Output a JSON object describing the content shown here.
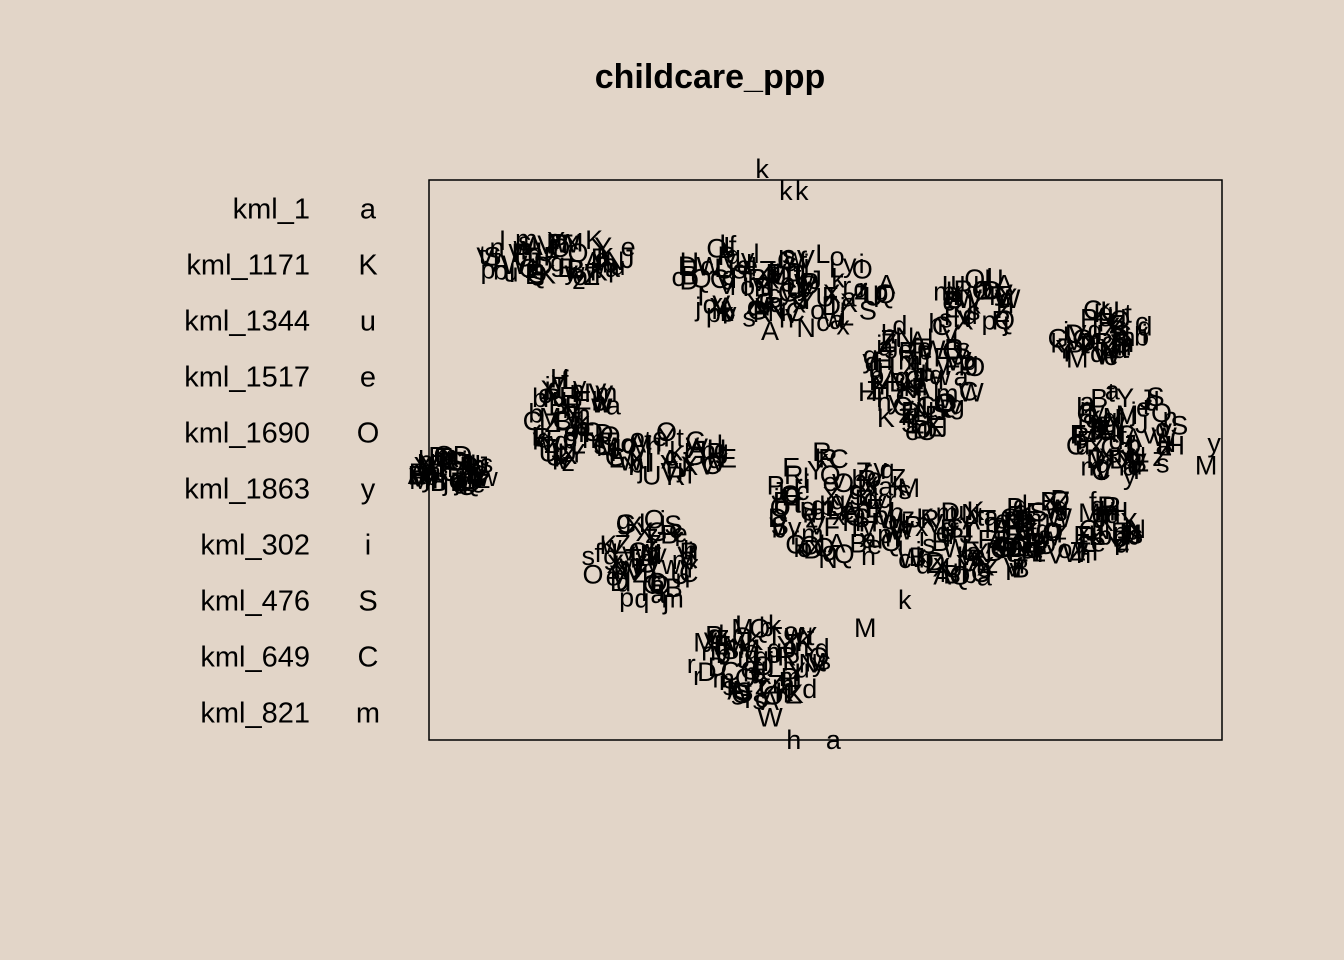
{
  "chart_data": {
    "type": "scatter",
    "title": "childcare_ppp",
    "xlabel": "",
    "ylabel": "",
    "axes_shown": false,
    "legend_position": "left",
    "legend": [
      {
        "name": "kml_1",
        "symbol": "a"
      },
      {
        "name": "kml_1171",
        "symbol": "K"
      },
      {
        "name": "kml_1344",
        "symbol": "u"
      },
      {
        "name": "kml_1517",
        "symbol": "e"
      },
      {
        "name": "kml_1690",
        "symbol": "O"
      },
      {
        "name": "kml_1863",
        "symbol": "y"
      },
      {
        "name": "kml_302",
        "symbol": "i"
      },
      {
        "name": "kml_476",
        "symbol": "S"
      },
      {
        "name": "kml_649",
        "symbol": "C"
      },
      {
        "name": "kml_821",
        "symbol": "m"
      }
    ],
    "point_labels_pool": "abcdefghijklmnopqrstuvwxyzABCDEFGHIJKLMNOPQRSTUVWXYZ",
    "clusters": [
      {
        "cx": 0.16,
        "cy": 0.86,
        "rx": 0.11,
        "ry": 0.04,
        "n": 70
      },
      {
        "cx": 0.4,
        "cy": 0.82,
        "rx": 0.09,
        "ry": 0.07,
        "n": 80
      },
      {
        "cx": 0.5,
        "cy": 0.8,
        "rx": 0.08,
        "ry": 0.07,
        "n": 50
      },
      {
        "cx": 0.18,
        "cy": 0.57,
        "rx": 0.06,
        "ry": 0.08,
        "n": 70
      },
      {
        "cx": 0.3,
        "cy": 0.51,
        "rx": 0.08,
        "ry": 0.04,
        "n": 50
      },
      {
        "cx": 0.03,
        "cy": 0.48,
        "rx": 0.05,
        "ry": 0.03,
        "n": 60
      },
      {
        "cx": 0.27,
        "cy": 0.32,
        "rx": 0.07,
        "ry": 0.08,
        "n": 70
      },
      {
        "cx": 0.42,
        "cy": 0.14,
        "rx": 0.09,
        "ry": 0.07,
        "n": 90
      },
      {
        "cx": 0.52,
        "cy": 0.42,
        "rx": 0.09,
        "ry": 0.1,
        "n": 110
      },
      {
        "cx": 0.62,
        "cy": 0.65,
        "rx": 0.07,
        "ry": 0.1,
        "n": 100
      },
      {
        "cx": 0.68,
        "cy": 0.35,
        "rx": 0.1,
        "ry": 0.06,
        "n": 90
      },
      {
        "cx": 0.8,
        "cy": 0.38,
        "rx": 0.1,
        "ry": 0.05,
        "n": 90
      },
      {
        "cx": 0.88,
        "cy": 0.55,
        "rx": 0.07,
        "ry": 0.08,
        "n": 80
      },
      {
        "cx": 0.85,
        "cy": 0.72,
        "rx": 0.06,
        "ry": 0.05,
        "n": 50
      },
      {
        "cx": 0.69,
        "cy": 0.78,
        "rx": 0.05,
        "ry": 0.05,
        "n": 40
      }
    ],
    "outliers": [
      {
        "x": 0.42,
        "y": 1.02,
        "label": "k"
      },
      {
        "x": 0.45,
        "y": 0.98,
        "label": "k"
      },
      {
        "x": 0.47,
        "y": 0.98,
        "label": "k"
      },
      {
        "x": 0.42,
        "y": 0.78,
        "label": "v"
      },
      {
        "x": 0.43,
        "y": 0.73,
        "label": "A"
      },
      {
        "x": 0.6,
        "y": 0.72,
        "label": "N"
      },
      {
        "x": 0.93,
        "y": 0.53,
        "label": "N"
      },
      {
        "x": 0.99,
        "y": 0.53,
        "label": "y"
      },
      {
        "x": 0.98,
        "y": 0.49,
        "label": "M"
      },
      {
        "x": 0.43,
        "y": 0.04,
        "label": "W"
      },
      {
        "x": 0.46,
        "y": 0.0,
        "label": "h"
      },
      {
        "x": 0.51,
        "y": 0.0,
        "label": "a"
      },
      {
        "x": 0.43,
        "y": 0.07,
        "label": "A"
      },
      {
        "x": 0.6,
        "y": 0.25,
        "label": "k"
      },
      {
        "x": 0.55,
        "y": 0.2,
        "label": "M"
      }
    ]
  }
}
